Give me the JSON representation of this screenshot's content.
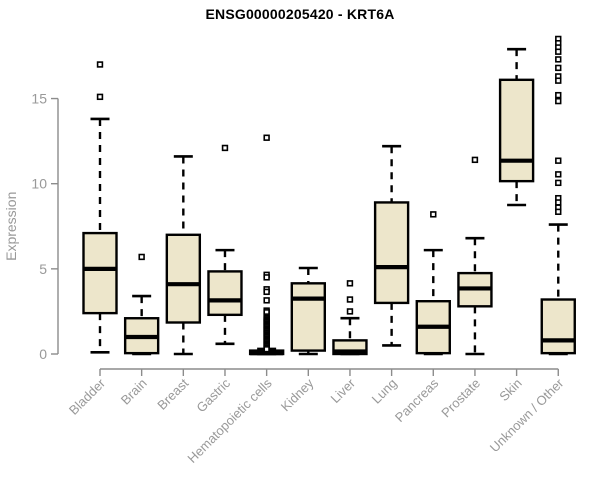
{
  "title": "ENSG00000205420 - KRT6A",
  "colors": {
    "box_fill": "#ede6cb",
    "box_stroke": "#000000",
    "median": "#000000",
    "whisker": "#000000",
    "outlier_stroke": "#000000",
    "outlier_fill": "#ffffff",
    "axis_line": "#8c8c8c",
    "axis_text": "#999999",
    "title_text": "#000000",
    "background": "#ffffff"
  },
  "chart_data": {
    "type": "boxplot",
    "title": "ENSG00000205420 - KRT6A",
    "xlabel": "",
    "ylabel": "Expression",
    "ylim": [
      0,
      18.5
    ],
    "y_ticks": [
      0,
      5,
      10,
      15
    ],
    "grid": false,
    "legend": "none",
    "categories": [
      "Bladder",
      "Brain",
      "Breast",
      "Gastric",
      "Hematopoietic cells",
      "Kidney",
      "Liver",
      "Lung",
      "Pancreas",
      "Prostate",
      "Skin",
      "Unknown / Other"
    ],
    "series": [
      {
        "name": "Bladder",
        "low": 0.1,
        "q1": 2.4,
        "median": 5.0,
        "q3": 7.1,
        "high": 13.8,
        "outliers": [
          17.0,
          15.1
        ]
      },
      {
        "name": "Brain",
        "low": 0,
        "q1": 0.05,
        "median": 1.0,
        "q3": 2.1,
        "high": 3.4,
        "outliers": [
          5.7
        ]
      },
      {
        "name": "Breast",
        "low": 0,
        "q1": 1.85,
        "median": 4.1,
        "q3": 7.0,
        "high": 11.6,
        "outliers": []
      },
      {
        "name": "Gastric",
        "low": 0.6,
        "q1": 2.3,
        "median": 3.15,
        "q3": 4.85,
        "high": 6.1,
        "outliers": [
          12.1
        ]
      },
      {
        "name": "Hematopoietic cells",
        "low": 0,
        "q1": 0,
        "median": 0.05,
        "q3": 0.2,
        "high": 0.3,
        "outliers": [
          12.7,
          4.65,
          4.5,
          3.8,
          3.65,
          3.15,
          2.55,
          2.45,
          2.2,
          2.12,
          2.04,
          1.96,
          1.88,
          1.8,
          1.72,
          1.64,
          1.56,
          1.48,
          1.4,
          1.32,
          1.24,
          1.16,
          1.08,
          1.0,
          0.92,
          0.84,
          0.76,
          0.68,
          0.6,
          0.52,
          0.44,
          0.36,
          0.28
        ]
      },
      {
        "name": "Kidney",
        "low": 0,
        "q1": 0.2,
        "median": 3.25,
        "q3": 4.15,
        "high": 5.05,
        "outliers": []
      },
      {
        "name": "Liver",
        "low": 0,
        "q1": 0,
        "median": 0.15,
        "q3": 0.8,
        "high": 2.1,
        "outliers": [
          4.15,
          3.2,
          2.5
        ]
      },
      {
        "name": "Lung",
        "low": 0.5,
        "q1": 3.0,
        "median": 5.1,
        "q3": 8.9,
        "high": 12.2,
        "outliers": []
      },
      {
        "name": "Pancreas",
        "low": 0,
        "q1": 0.05,
        "median": 1.6,
        "q3": 3.1,
        "high": 6.1,
        "outliers": [
          8.2
        ]
      },
      {
        "name": "Prostate",
        "low": 0,
        "q1": 2.8,
        "median": 3.85,
        "q3": 4.75,
        "high": 6.8,
        "outliers": [
          11.4
        ]
      },
      {
        "name": "Skin",
        "low": 8.75,
        "q1": 10.15,
        "median": 11.35,
        "q3": 16.1,
        "high": 17.9,
        "outliers": []
      },
      {
        "name": "Unknown / Other",
        "low": 0,
        "q1": 0.05,
        "median": 0.8,
        "q3": 3.2,
        "high": 7.6,
        "outliers": [
          18.5,
          18.25,
          18.0,
          17.75,
          17.3,
          16.8,
          16.3,
          16.05,
          15.2,
          14.85,
          11.35,
          10.55,
          10.05,
          9.15,
          8.9,
          8.6,
          8.35
        ]
      }
    ]
  }
}
